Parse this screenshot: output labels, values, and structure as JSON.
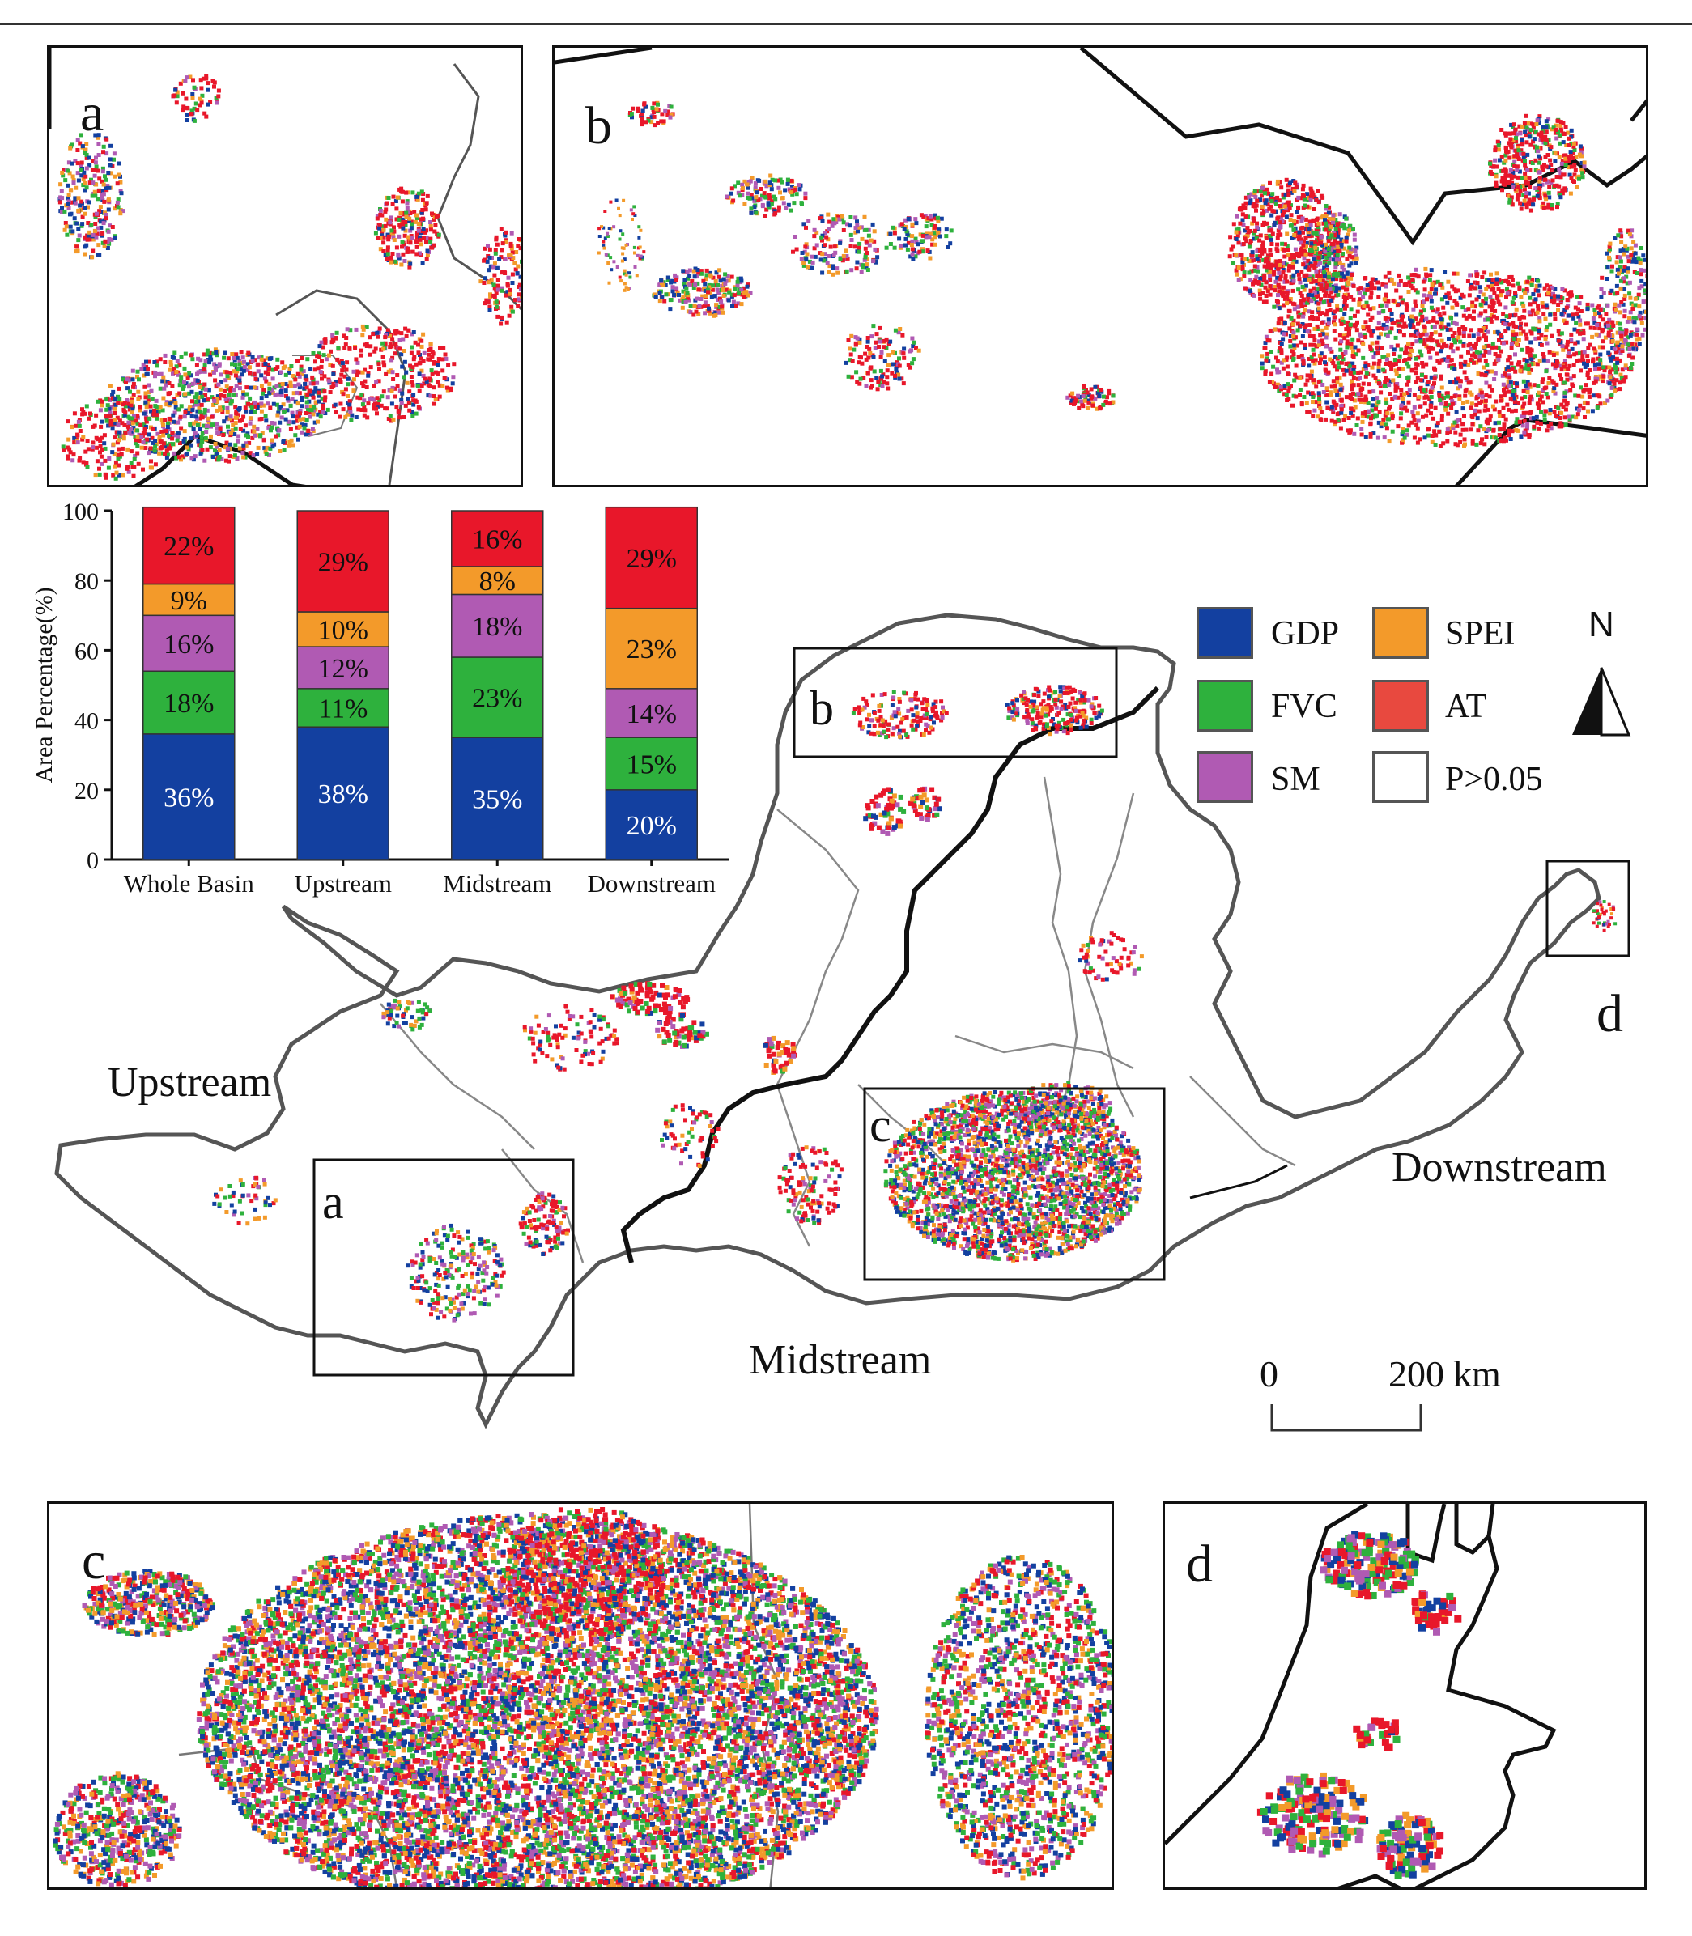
{
  "panels": {
    "a": {
      "letter": "a"
    },
    "b": {
      "letter": "b"
    },
    "c": {
      "letter": "c"
    },
    "d": {
      "letter": "d"
    }
  },
  "region_labels": {
    "upstream": "Upstream",
    "midstream": "Midstream",
    "downstream": "Downstream"
  },
  "map_box_labels": [
    "a",
    "b",
    "c",
    "d"
  ],
  "scale_bar": {
    "start": "0",
    "end": "200",
    "unit": "km"
  },
  "north_arrow": {
    "label": "N"
  },
  "legend": [
    {
      "label": "GDP",
      "color": "#1340a0"
    },
    {
      "label": "SPEI",
      "color": "#f39a2a"
    },
    {
      "label": "FVC",
      "color": "#2eb13d"
    },
    {
      "label": "AT",
      "color": "#e8493f"
    },
    {
      "label": "SM",
      "color": "#b05ab3"
    },
    {
      "label": "P>0.05",
      "color": "#ffffff"
    }
  ],
  "colors": {
    "gdp": "#1340a0",
    "fvc": "#2eb13d",
    "sm": "#b05ab3",
    "spei": "#f39a2a",
    "at": "#e8172a",
    "boundary": "#555555"
  },
  "chart_data": {
    "type": "bar",
    "stacked": true,
    "categories": [
      "Whole Basin",
      "Upstream",
      "Midstream",
      "Downstream"
    ],
    "ylabel": "Area Percentage(%)",
    "ylim": [
      0,
      100
    ],
    "yticks": [
      "0",
      "20",
      "40",
      "60",
      "80",
      "100"
    ],
    "series": [
      {
        "key": "GDP",
        "color": "#1340a0",
        "values": [
          36,
          38,
          35,
          20
        ],
        "labels": [
          "36%",
          "38%",
          "35%",
          "20%"
        ]
      },
      {
        "key": "FVC",
        "color": "#2eb13d",
        "values": [
          18,
          11,
          23,
          15
        ],
        "labels": [
          "18%",
          "11%",
          "23%",
          "15%"
        ]
      },
      {
        "key": "SM",
        "color": "#b05ab3",
        "values": [
          16,
          12,
          18,
          14
        ],
        "labels": [
          "16%",
          "12%",
          "18%",
          "14%"
        ]
      },
      {
        "key": "SPEI",
        "color": "#f39a2a",
        "values": [
          9,
          10,
          8,
          23
        ],
        "labels": [
          "9%",
          "10%",
          "8%",
          "23%"
        ]
      },
      {
        "key": "AT",
        "color": "#e8172a",
        "values": [
          22,
          29,
          16,
          29
        ],
        "labels": [
          "22%",
          "29%",
          "16%",
          "29%"
        ]
      }
    ]
  }
}
